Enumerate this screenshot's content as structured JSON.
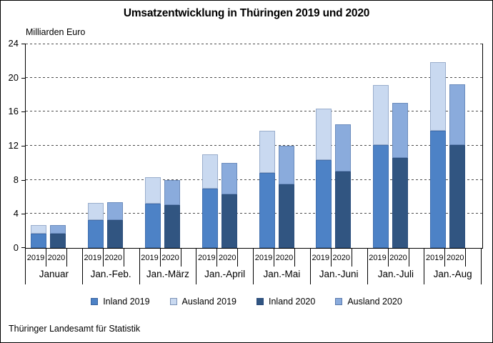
{
  "title": "Umsatzentwicklung in Thüringen 2019 und 2020",
  "y_axis": {
    "unit_label": "Milliarden Euro"
  },
  "footer": {
    "source": "Thüringer Landesamt für Statistik"
  },
  "chart_data": {
    "type": "bar",
    "stacked": true,
    "title": "Umsatzentwicklung in Thüringen 2019 und 2020",
    "xlabel": "",
    "ylabel": "Milliarden Euro",
    "ylim": [
      0,
      24
    ],
    "y_ticks": [
      0,
      4,
      8,
      12,
      16,
      20,
      24
    ],
    "grid": "dashed-horizontal",
    "legend_position": "bottom",
    "categories": [
      "Januar",
      "Jan.-Feb.",
      "Jan.-März",
      "Jan.-April",
      "Jan.-Mai",
      "Jan.-Juni",
      "Jan.-Juli",
      "Jan.-Aug"
    ],
    "bar_years": [
      "2019",
      "2020"
    ],
    "series": [
      {
        "name": "Inland 2019",
        "stack": "2019",
        "color": "#4d82c6",
        "values": [
          1.7,
          3.3,
          5.2,
          7.0,
          8.8,
          10.3,
          12.1,
          13.8
        ]
      },
      {
        "name": "Ausland 2019",
        "stack": "2019",
        "color": "#c9d9f0",
        "values": [
          1.0,
          2.0,
          3.1,
          4.0,
          5.0,
          6.1,
          7.0,
          8.0
        ]
      },
      {
        "name": "Inland 2020",
        "stack": "2020",
        "color": "#315581",
        "values": [
          1.7,
          3.3,
          5.0,
          6.3,
          7.5,
          9.0,
          10.6,
          12.1
        ]
      },
      {
        "name": "Ausland 2020",
        "stack": "2020",
        "color": "#8aabdc",
        "values": [
          1.0,
          2.1,
          3.0,
          3.7,
          4.5,
          5.5,
          6.4,
          7.1
        ]
      }
    ],
    "stack_totals": {
      "2019": [
        2.7,
        5.3,
        8.3,
        11.0,
        13.8,
        16.4,
        19.1,
        21.8
      ],
      "2020": [
        2.7,
        5.4,
        8.0,
        10.0,
        12.0,
        14.5,
        17.0,
        19.2
      ]
    }
  }
}
